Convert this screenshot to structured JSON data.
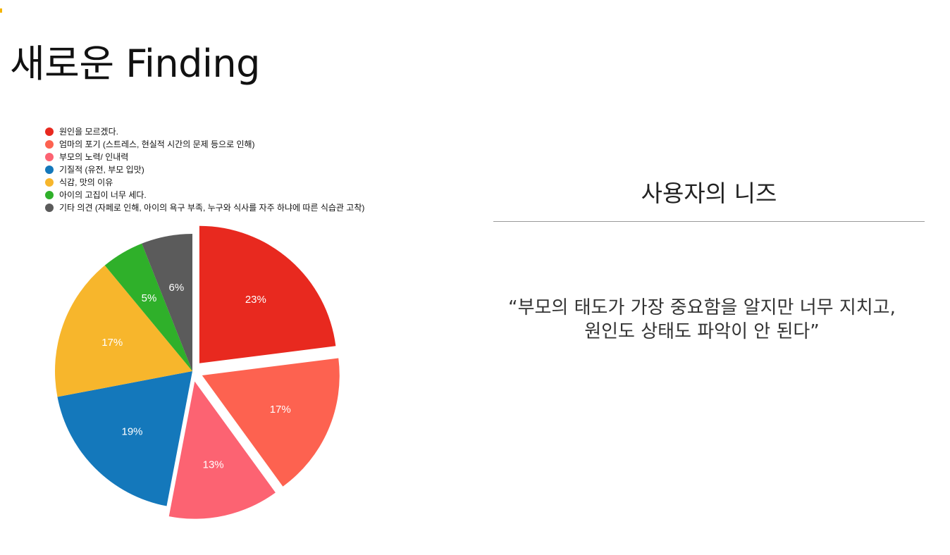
{
  "page": {
    "title": "새로운 Finding",
    "accent_color": "#f4b400"
  },
  "panel": {
    "heading": "사용자의 니즈",
    "quote_lines": [
      "“부모의 태도가 가장 중요함을 알지만 너무 지치고,",
      "원인도 상태도 파악이 안 된다”"
    ]
  },
  "chart_data": {
    "type": "pie",
    "title": "",
    "legend_position": "top-left",
    "exploded": [
      true,
      true,
      true,
      false,
      false,
      false,
      false
    ],
    "series": [
      {
        "label": "원인을 모르겠다.",
        "value": 23,
        "value_label": "23%",
        "color": "#e8291f"
      },
      {
        "label": "엄마의 포기 (스트레스, 현실적 시간의 문제 등으로 인해)",
        "value": 17,
        "value_label": "17%",
        "color": "#fd6250"
      },
      {
        "label": "부모의 노력/ 인내력",
        "value": 13,
        "value_label": "13%",
        "color": "#fc6372"
      },
      {
        "label": "기질적 (유전, 부모 입맛)",
        "value": 19,
        "value_label": "19%",
        "color": "#1478bb"
      },
      {
        "label": "식감, 맛의 이유",
        "value": 17,
        "value_label": "17%",
        "color": "#f7b62c"
      },
      {
        "label": "아이의 고집이 너무 세다.",
        "value": 5,
        "value_label": "5%",
        "color": "#2fb02a"
      },
      {
        "label": "기타 의견 (자페로 인해, 아이의 욕구 부족, 누구와 식사를 자주 하냐에 따른 식습관 고착)",
        "value": 6,
        "value_label": "6%",
        "color": "#5b5b5b"
      }
    ]
  }
}
